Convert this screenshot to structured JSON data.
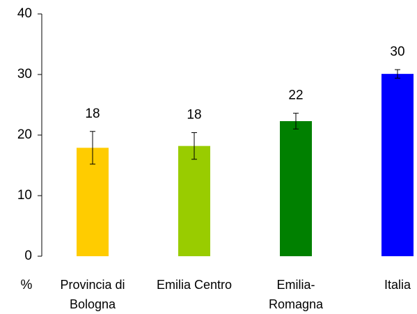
{
  "chart_data": {
    "type": "bar",
    "ylabel": "%",
    "categories": [
      [
        "Provincia di",
        "Bologna"
      ],
      [
        "Emilia Centro"
      ],
      [
        "Emilia-",
        "Romagna"
      ],
      [
        "Italia"
      ]
    ],
    "values": [
      17.9,
      18.2,
      22.3,
      30.1
    ],
    "value_labels": [
      "18",
      "18",
      "22",
      "30"
    ],
    "errors": [
      2.7,
      2.2,
      1.3,
      0.7
    ],
    "colors": [
      "#ffcc00",
      "#99cc00",
      "#008000",
      "#0000ff"
    ],
    "ylim": [
      0,
      40
    ],
    "yticks": [
      0,
      10,
      20,
      30,
      40
    ],
    "grid": false
  }
}
